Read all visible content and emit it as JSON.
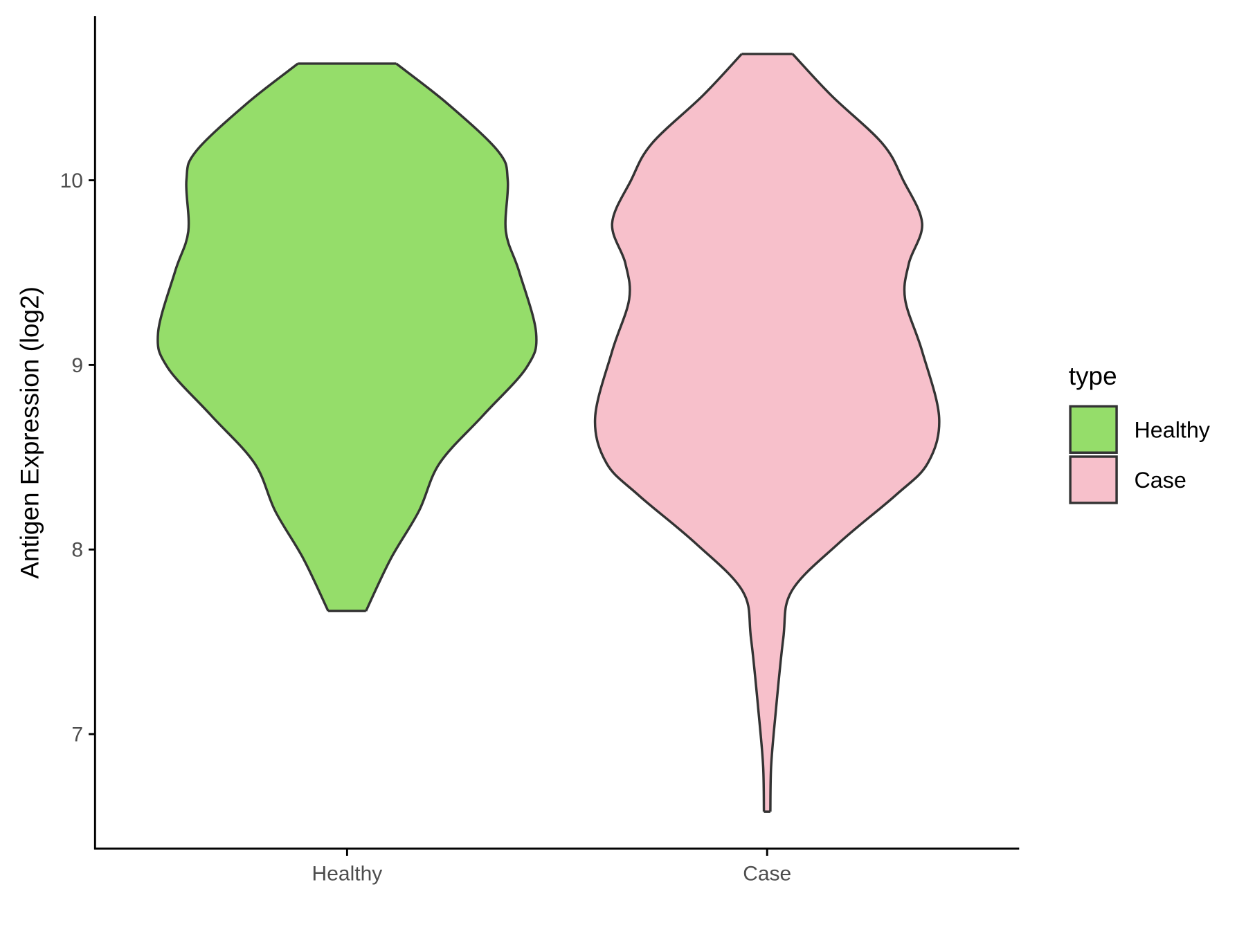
{
  "chart_data": {
    "type": "violin",
    "y_label": "Antigen Expression (log2)",
    "categories": [
      "Healthy",
      "Case"
    ],
    "series": [
      {
        "name": "Healthy",
        "color": "#95dd6a",
        "y": [
          10.632,
          10.416,
          10.156,
          10.0,
          9.723,
          9.506,
          9.173,
          8.987,
          8.727,
          8.468,
          8.208,
          7.948,
          7.667
        ],
        "density": [
          0.26,
          0.53,
          0.8,
          0.85,
          0.84,
          0.91,
          1.0,
          0.95,
          0.72,
          0.49,
          0.38,
          0.23,
          0.1
        ]
      },
      {
        "name": "Case",
        "color": "#f7c0cb",
        "y": [
          10.684,
          10.459,
          10.199,
          10.0,
          9.766,
          9.55,
          9.355,
          9.074,
          8.714,
          8.468,
          8.294,
          8.035,
          7.775,
          7.515,
          7.082,
          6.823,
          6.58
        ],
        "density": [
          0.135,
          0.34,
          0.61,
          0.72,
          0.82,
          0.75,
          0.73,
          0.82,
          0.91,
          0.85,
          0.68,
          0.38,
          0.13,
          0.085,
          0.042,
          0.021,
          0.017
        ]
      }
    ],
    "ylim": [
      6.38,
      10.89
    ],
    "yticks": [
      7,
      8,
      9,
      10
    ],
    "legend_title": "type",
    "legend": "right"
  }
}
